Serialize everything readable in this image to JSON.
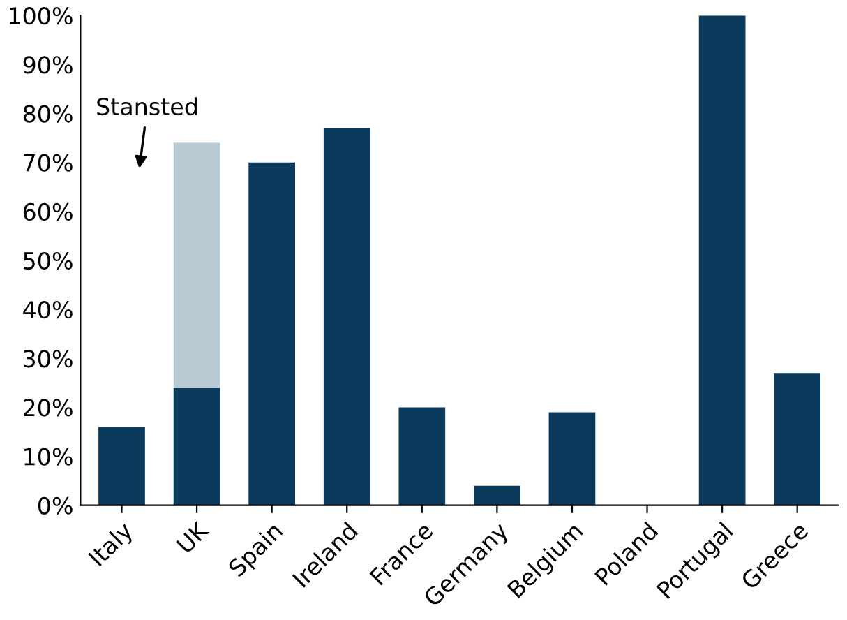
{
  "chart_data": {
    "type": "bar",
    "stacked": true,
    "categories": [
      "Italy",
      "UK",
      "Spain",
      "Ireland",
      "France",
      "Germany",
      "Belgium",
      "Poland",
      "Portugal",
      "Greece"
    ],
    "series": [
      {
        "color": "#0b3a5c",
        "values": [
          16,
          24,
          70,
          77,
          20,
          4,
          19,
          0,
          100,
          27
        ]
      },
      {
        "color": "#b8cad3",
        "values": [
          null,
          50,
          null,
          null,
          null,
          null,
          null,
          null,
          null,
          null
        ]
      }
    ],
    "ylim": [
      0,
      100
    ],
    "yticks": [
      {
        "value": 0,
        "label": "0%"
      },
      {
        "value": 10,
        "label": "10%"
      },
      {
        "value": 20,
        "label": "20%"
      },
      {
        "value": 30,
        "label": "30%"
      },
      {
        "value": 40,
        "label": "40%"
      },
      {
        "value": 50,
        "label": "50%"
      },
      {
        "value": 60,
        "label": "60%"
      },
      {
        "value": 70,
        "label": "70%"
      },
      {
        "value": 80,
        "label": "80%"
      },
      {
        "value": 90,
        "label": "90%"
      },
      {
        "value": 100,
        "label": "100%"
      }
    ],
    "annotations": [
      "Stansted"
    ],
    "grid": false,
    "legend": false
  }
}
